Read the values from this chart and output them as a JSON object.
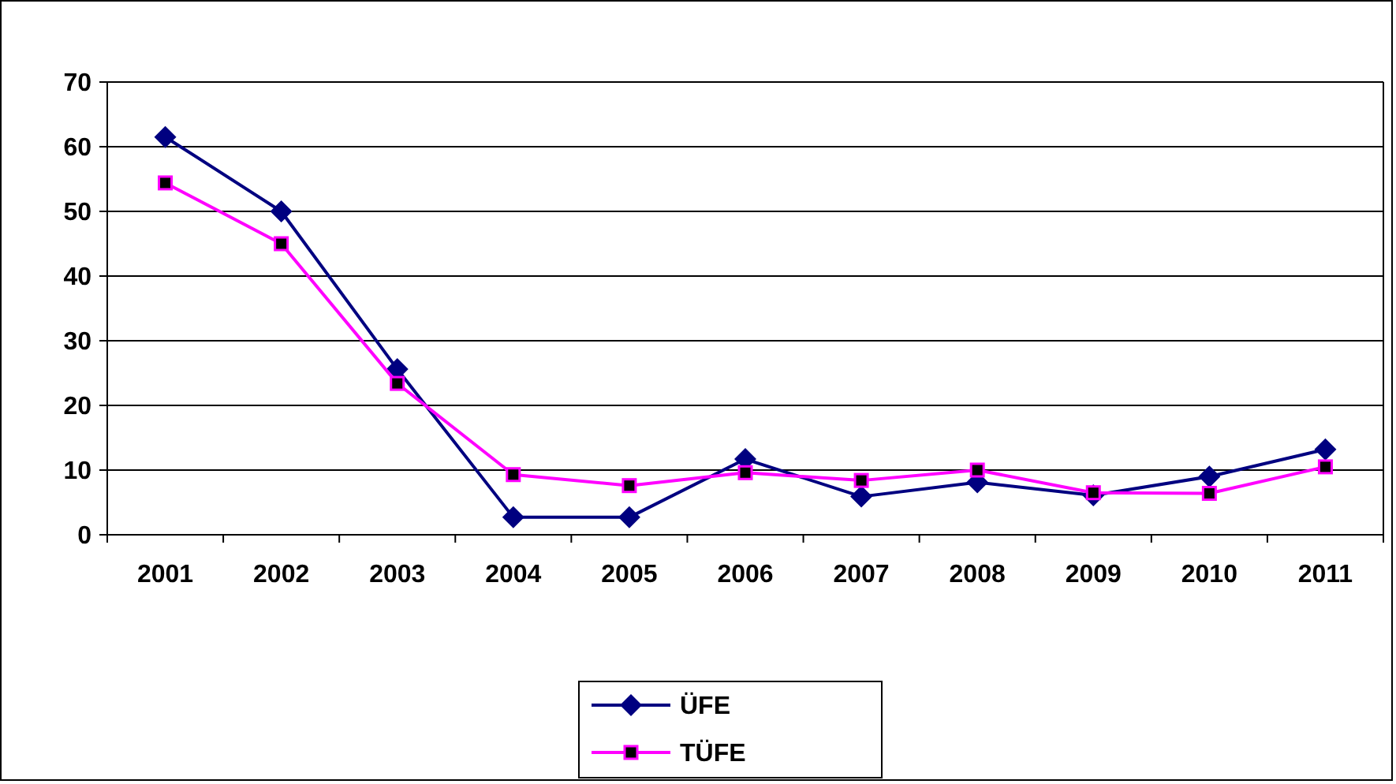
{
  "chart_data": {
    "type": "line",
    "categories": [
      "2001",
      "2002",
      "2003",
      "2004",
      "2005",
      "2006",
      "2007",
      "2008",
      "2009",
      "2010",
      "2011"
    ],
    "series": [
      {
        "name": "ÜFE",
        "color": "#000080",
        "marker": "diamond",
        "values": [
          61.5,
          50,
          25.6,
          2.7,
          2.7,
          11.7,
          5.9,
          8.1,
          6.1,
          9,
          13.2
        ]
      },
      {
        "name": "TÜFE",
        "color": "#ff00ff",
        "marker": "square",
        "values": [
          54.4,
          45,
          23.4,
          9.3,
          7.6,
          9.6,
          8.4,
          10,
          6.5,
          6.4,
          10.5
        ]
      }
    ],
    "ylim": [
      0,
      70
    ],
    "yticks": [
      0,
      10,
      20,
      30,
      40,
      50,
      60,
      70
    ],
    "grid": "y",
    "legend": "bottom",
    "line_style": "solid"
  }
}
